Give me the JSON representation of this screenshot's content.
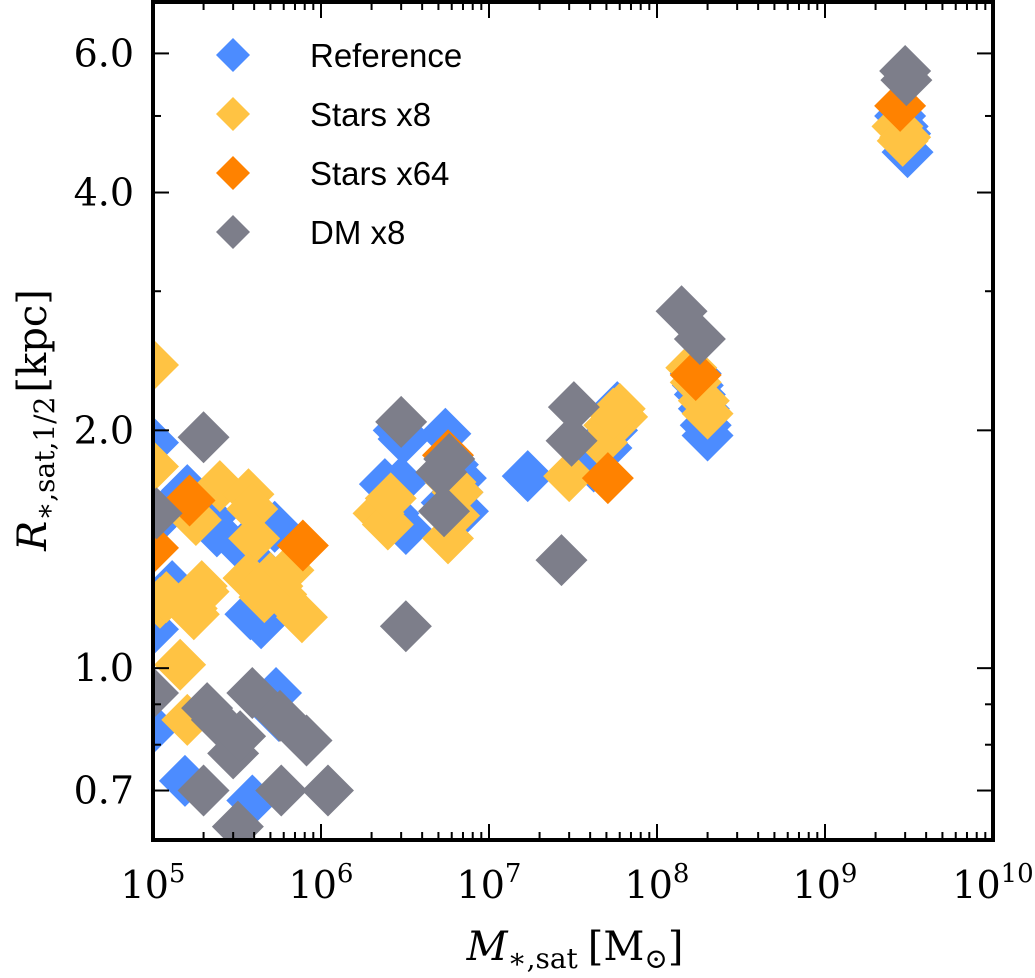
{
  "chart_data": {
    "type": "scatter",
    "title": "",
    "xlabel": "M_{*,sat} [M_sun]",
    "ylabel": "R_{*,sat,1/2} [kpc]",
    "xlabel_parts": {
      "main": "M",
      "sub": "∗,sat",
      "unit_open": "[M",
      "unit_sub": "⊙",
      "unit_close": "]"
    },
    "ylabel_parts": {
      "main": "R",
      "sub": "∗,sat,1/2",
      "unit": "[kpc]"
    },
    "xscale": "log",
    "yscale": "log",
    "xlim": [
      100000,
      10000000000
    ],
    "ylim": [
      0.606,
      6.97
    ],
    "x_major_ticks": [
      {
        "value": 100000,
        "base": "10",
        "exp": "5"
      },
      {
        "value": 1000000,
        "base": "10",
        "exp": "6"
      },
      {
        "value": 10000000,
        "base": "10",
        "exp": "7"
      },
      {
        "value": 100000000,
        "base": "10",
        "exp": "8"
      },
      {
        "value": 1000000000,
        "base": "10",
        "exp": "9"
      },
      {
        "value": 10000000000,
        "base": "10",
        "exp": "10"
      }
    ],
    "y_major_ticks": [
      {
        "value": 0.7,
        "label": "0.7"
      },
      {
        "value": 1.0,
        "label": "1.0"
      },
      {
        "value": 2.0,
        "label": "2.0"
      },
      {
        "value": 4.0,
        "label": "4.0"
      },
      {
        "value": 6.0,
        "label": "6.0"
      }
    ],
    "y_minor_ticks": [
      0.8,
      0.9,
      3.0,
      5.0
    ],
    "grid": false,
    "legend_position": "top-left",
    "marker": "diamond",
    "series": [
      {
        "name": "Reference",
        "color": "#4c8cff",
        "points": [
          [
            100000,
            1.93
          ],
          [
            100000,
            1.12
          ],
          [
            100000,
            0.84
          ],
          [
            160000,
            1.68
          ],
          [
            155000,
            1.62
          ],
          [
            130000,
            1.27
          ],
          [
            220000,
            1.55
          ],
          [
            240000,
            1.49
          ],
          [
            340000,
            1.42
          ],
          [
            530000,
            1.51
          ],
          [
            380000,
            1.17
          ],
          [
            440000,
            1.14
          ],
          [
            540000,
            0.93
          ],
          [
            560000,
            0.87
          ],
          [
            155000,
            0.72
          ],
          [
            390000,
            0.68
          ],
          [
            120000,
            1.58
          ],
          [
            450000,
            1.33
          ],
          [
            2400000,
            1.71
          ],
          [
            2700000,
            1.57
          ],
          [
            2900000,
            2.0
          ],
          [
            3100000,
            1.95
          ],
          [
            3000000,
            1.72
          ],
          [
            3200000,
            1.5
          ],
          [
            5500000,
            1.98
          ],
          [
            6100000,
            1.81
          ],
          [
            6800000,
            1.74
          ],
          [
            7000000,
            1.58
          ],
          [
            6500000,
            1.67
          ],
          [
            5600000,
            1.62
          ],
          [
            17000000,
            1.75
          ],
          [
            42000000,
            1.8
          ],
          [
            50000000,
            1.9
          ],
          [
            55000000,
            2.05
          ],
          [
            58000000,
            2.14
          ],
          [
            54000000,
            2.0
          ],
          [
            170000000,
            2.36
          ],
          [
            180000000,
            2.22
          ],
          [
            190000000,
            2.13
          ],
          [
            195000000,
            2.03
          ],
          [
            200000000,
            1.97
          ],
          [
            175000000,
            2.28
          ],
          [
            2800000000,
            5.0
          ],
          [
            3000000000,
            4.75
          ],
          [
            3100000000,
            4.5
          ],
          [
            2900000000,
            4.85
          ]
        ]
      },
      {
        "name": "Stars x8",
        "color": "#ffc343",
        "points": [
          [
            100000,
            2.42
          ],
          [
            100000,
            1.8
          ],
          [
            110000,
            1.21
          ],
          [
            120000,
            1.23
          ],
          [
            145000,
            1.01
          ],
          [
            160000,
            0.86
          ],
          [
            170000,
            1.56
          ],
          [
            180000,
            1.54
          ],
          [
            195000,
            1.27
          ],
          [
            200000,
            1.25
          ],
          [
            175000,
            1.17
          ],
          [
            250000,
            1.7
          ],
          [
            370000,
            1.66
          ],
          [
            390000,
            1.59
          ],
          [
            400000,
            1.46
          ],
          [
            370000,
            1.3
          ],
          [
            500000,
            1.3
          ],
          [
            550000,
            1.27
          ],
          [
            580000,
            1.24
          ],
          [
            640000,
            1.33
          ],
          [
            770000,
            1.16
          ],
          [
            460000,
            1.23
          ],
          [
            170000,
            1.19
          ],
          [
            2200000,
            1.57
          ],
          [
            2500000,
            1.52
          ],
          [
            2600000,
            1.64
          ],
          [
            5900000,
            1.72
          ],
          [
            6200000,
            1.56
          ],
          [
            5700000,
            1.46
          ],
          [
            6500000,
            1.67
          ],
          [
            30000000,
            1.75
          ],
          [
            47000000,
            1.93
          ],
          [
            52000000,
            2.03
          ],
          [
            60000000,
            2.13
          ],
          [
            62000000,
            2.08
          ],
          [
            55000000,
            2.1
          ],
          [
            160000000,
            2.4
          ],
          [
            170000000,
            2.3
          ],
          [
            190000000,
            2.18
          ],
          [
            200000000,
            2.1
          ],
          [
            2700000000,
            4.85
          ],
          [
            2900000000,
            4.65
          ],
          [
            3000000000,
            4.7
          ]
        ]
      },
      {
        "name": "Stars x64",
        "color": "#ff8200",
        "points": [
          [
            100000,
            1.42
          ],
          [
            165000,
            1.63
          ],
          [
            780000,
            1.43
          ],
          [
            5700000,
            1.86
          ],
          [
            51000000,
            1.74
          ],
          [
            170000000,
            2.35
          ],
          [
            2800000000,
            5.15
          ]
        ]
      },
      {
        "name": "DM x8",
        "color": "#7d7e8a",
        "points": [
          [
            100000,
            0.93
          ],
          [
            105000,
            1.57
          ],
          [
            200000,
            1.96
          ],
          [
            210000,
            0.89
          ],
          [
            240000,
            0.86
          ],
          [
            200000,
            0.7
          ],
          [
            300000,
            0.78
          ],
          [
            330000,
            0.82
          ],
          [
            390000,
            0.93
          ],
          [
            580000,
            0.7
          ],
          [
            570000,
            0.87
          ],
          [
            820000,
            0.81
          ],
          [
            1100000,
            0.7
          ],
          [
            320000,
            0.63
          ],
          [
            3000000,
            2.05
          ],
          [
            5200000,
            1.77
          ],
          [
            5800000,
            1.84
          ],
          [
            5400000,
            1.58
          ],
          [
            3200000,
            1.13
          ],
          [
            27000000,
            1.37
          ],
          [
            32000000,
            2.14
          ],
          [
            31000000,
            1.94
          ],
          [
            140000000,
            2.83
          ],
          [
            180000000,
            2.61
          ],
          [
            3000000000,
            5.7
          ],
          [
            3050000000,
            5.55
          ]
        ]
      }
    ]
  }
}
